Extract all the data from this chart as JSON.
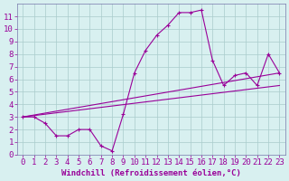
{
  "xlabel": "Windchill (Refroidissement éolien,°C)",
  "background_color": "#d8f0f0",
  "grid_color": "#aacccc",
  "line_color": "#990099",
  "xlim": [
    -0.5,
    23.5
  ],
  "ylim": [
    0,
    12
  ],
  "xticks": [
    0,
    1,
    2,
    3,
    4,
    5,
    6,
    7,
    8,
    9,
    10,
    11,
    12,
    13,
    14,
    15,
    16,
    17,
    18,
    19,
    20,
    21,
    22,
    23
  ],
  "yticks": [
    0,
    1,
    2,
    3,
    4,
    5,
    6,
    7,
    8,
    9,
    10,
    11
  ],
  "line1_x": [
    0,
    1,
    2,
    3,
    4,
    5,
    6,
    7,
    8,
    9,
    10,
    11,
    12,
    13,
    14,
    15,
    16,
    17,
    18,
    19,
    20,
    21,
    22,
    23
  ],
  "line1_y": [
    3.0,
    3.0,
    2.5,
    1.5,
    1.5,
    2.0,
    2.0,
    0.7,
    0.3,
    3.2,
    6.5,
    8.3,
    9.5,
    10.3,
    11.3,
    11.3,
    11.5,
    7.5,
    5.5,
    6.3,
    6.5,
    5.5,
    8.0,
    6.5
  ],
  "line2_x": [
    0,
    23
  ],
  "line2_y": [
    3.0,
    6.5
  ],
  "line3_x": [
    0,
    23
  ],
  "line3_y": [
    3.0,
    5.5
  ],
  "tick_fontsize": 6.5,
  "xlabel_fontsize": 6.5,
  "spine_color": "#7777aa"
}
